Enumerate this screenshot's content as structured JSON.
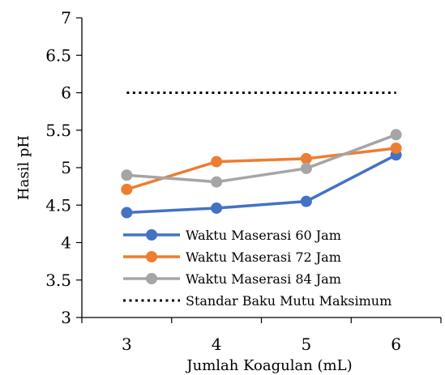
{
  "chart_data": {
    "type": "line",
    "title": "",
    "xlabel": "Jumlah Koagulan (mL)",
    "ylabel": "Hasil pH",
    "x": [
      3,
      4,
      5,
      6
    ],
    "x_tick_labels": [
      "3",
      "4",
      "5",
      "6"
    ],
    "ylim": [
      3,
      7
    ],
    "y_tick_labels": [
      "3",
      "3.5",
      "4",
      "4.5",
      "5",
      "5.5",
      "6",
      "6.5",
      "7"
    ],
    "grid": false,
    "legend_position": "bottom-right",
    "series": [
      {
        "name": "Waktu Maserasi 60 Jam",
        "values": [
          4.4,
          4.46,
          4.55,
          5.17
        ],
        "color": "#4472C4",
        "style": "solid-marker"
      },
      {
        "name": "Waktu Maserasi 72 Jam",
        "values": [
          4.71,
          5.08,
          5.12,
          5.26
        ],
        "color": "#ED7D31",
        "style": "solid-marker"
      },
      {
        "name": "Waktu Maserasi 84 Jam",
        "values": [
          4.9,
          4.81,
          4.99,
          5.44
        ],
        "color": "#A5A5A5",
        "style": "solid-marker"
      },
      {
        "name": "Standar Baku Mutu Maksimum",
        "values": [
          6,
          6,
          6,
          6
        ],
        "color": "#000000",
        "style": "dotted"
      }
    ]
  }
}
